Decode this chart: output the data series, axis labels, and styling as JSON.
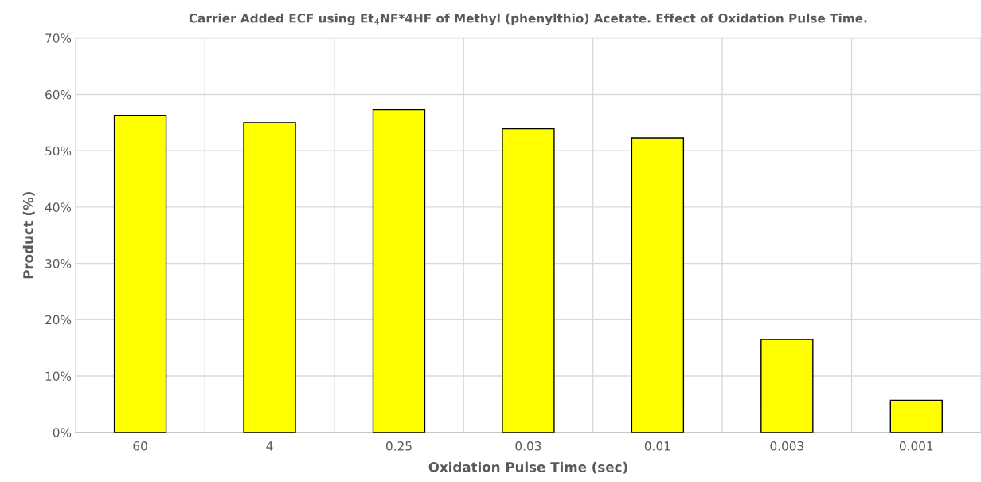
{
  "chart_data": {
    "type": "bar",
    "title": "Carrier Added ECF using Et$_{4}$NF*4HF of Methyl (phenylthio) Acetate. Effect of Oxidation Pulse Time.",
    "xlabel": "Oxidation Pulse Time (sec)",
    "ylabel": "Product (%)",
    "categories": [
      "60",
      "4",
      "0.25",
      "0.03",
      "0.01",
      "0.003",
      "0.001"
    ],
    "values": [
      56.3,
      55.0,
      57.3,
      53.9,
      52.3,
      16.5,
      5.7
    ],
    "color": "#ffff00",
    "ylim": [
      0,
      70
    ],
    "yticks": [
      {
        "value": 0,
        "label": "0%"
      },
      {
        "value": 10,
        "label": "10%"
      },
      {
        "value": 20,
        "label": "20%"
      },
      {
        "value": 30,
        "label": "30%"
      },
      {
        "value": 40,
        "label": "40%"
      },
      {
        "value": 50,
        "label": "50%"
      },
      {
        "value": 60,
        "label": "60%"
      },
      {
        "value": 70,
        "label": "70%"
      }
    ],
    "grid": true
  }
}
